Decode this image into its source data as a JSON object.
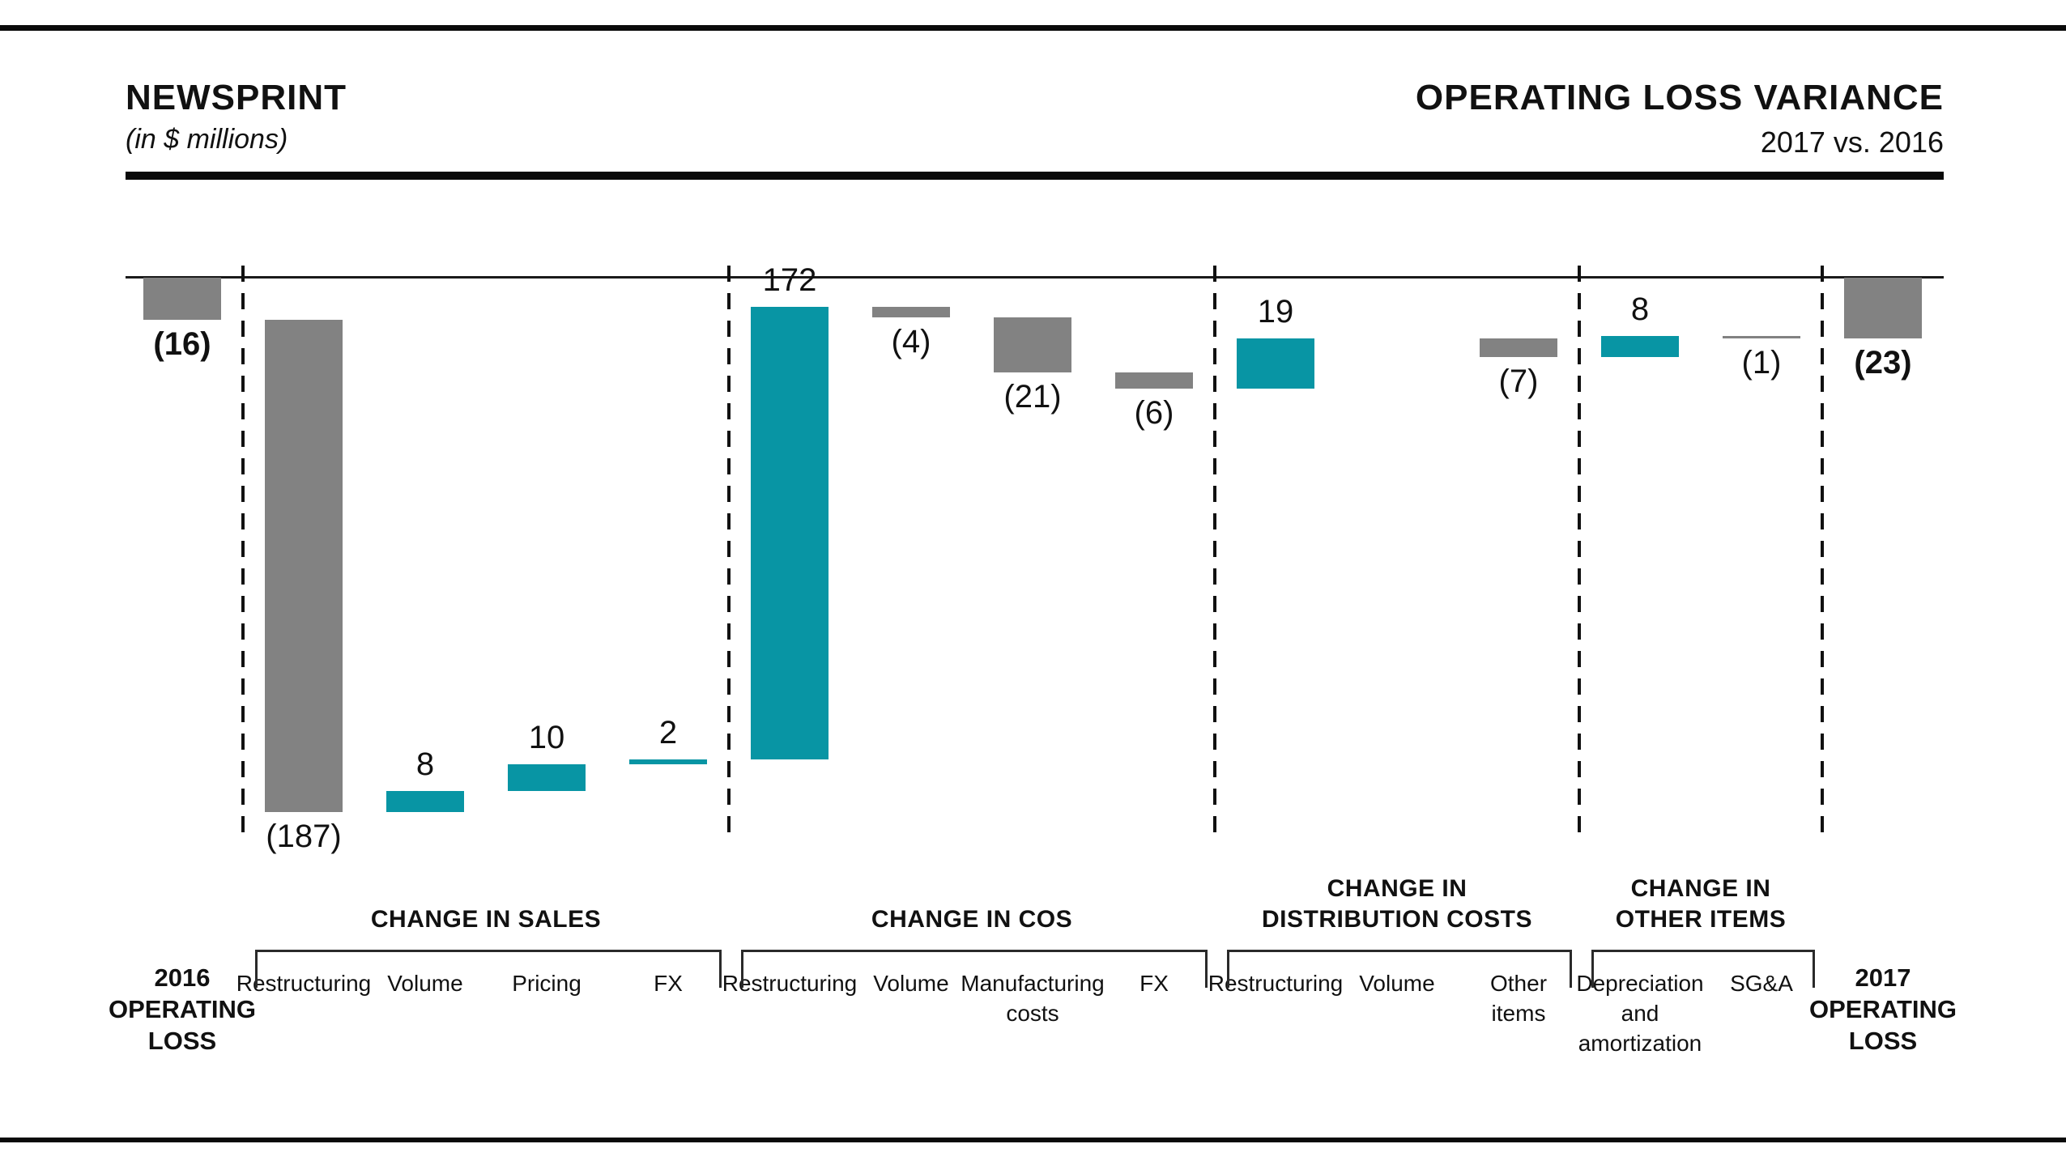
{
  "header": {
    "title_left": "NEWSPRINT",
    "subtitle_left": "(in $ millions)",
    "title_right": "OPERATING LOSS VARIANCE",
    "subtitle_right": "2017 vs. 2016"
  },
  "chart_data": {
    "type": "bar",
    "subtype": "waterfall",
    "title": "OPERATING LOSS VARIANCE",
    "subtitle": "2017 vs. 2016",
    "unit_label": "(in $ millions)",
    "orientation": "vertical",
    "zero_axis_line": true,
    "value_axis_hidden": true,
    "colors": {
      "increase": "#0895A4",
      "decrease": "#828282",
      "total": "#828282",
      "line": "#1a1a1a"
    },
    "bars": [
      {
        "name": "2016-operating-loss",
        "kind": "total",
        "value": -16,
        "label": "(16)",
        "axis_label_lines": [
          "2016",
          "OPERATING",
          "LOSS"
        ]
      },
      {
        "name": "sales-restructuring",
        "kind": "delta",
        "value": -187,
        "label": "(187)",
        "axis_label_lines": [
          "Restructuring"
        ]
      },
      {
        "name": "sales-volume",
        "kind": "delta",
        "value": 8,
        "label": "8",
        "axis_label_lines": [
          "Volume"
        ]
      },
      {
        "name": "sales-pricing",
        "kind": "delta",
        "value": 10,
        "label": "10",
        "axis_label_lines": [
          "Pricing"
        ]
      },
      {
        "name": "sales-fx",
        "kind": "delta",
        "value": 2,
        "label": "2",
        "axis_label_lines": [
          "FX"
        ]
      },
      {
        "name": "cos-restructuring",
        "kind": "delta",
        "value": 172,
        "label": "172",
        "axis_label_lines": [
          "Restructuring"
        ]
      },
      {
        "name": "cos-volume",
        "kind": "delta",
        "value": -4,
        "label": "(4)",
        "axis_label_lines": [
          "Volume"
        ]
      },
      {
        "name": "cos-manufacturing-costs",
        "kind": "delta",
        "value": -21,
        "label": "(21)",
        "axis_label_lines": [
          "Manufacturing",
          "costs"
        ]
      },
      {
        "name": "cos-fx",
        "kind": "delta",
        "value": -6,
        "label": "(6)",
        "axis_label_lines": [
          "FX"
        ]
      },
      {
        "name": "distribution-restructuring",
        "kind": "delta",
        "value": 19,
        "label": "19",
        "axis_label_lines": [
          "Restructuring"
        ]
      },
      {
        "name": "distribution-volume",
        "kind": "delta",
        "value": 0,
        "label": "",
        "axis_label_lines": [
          "Volume"
        ]
      },
      {
        "name": "distribution-other-items",
        "kind": "delta",
        "value": -7,
        "label": "(7)",
        "axis_label_lines": [
          "Other",
          "items"
        ]
      },
      {
        "name": "other-depreciation-and-amortization",
        "kind": "delta",
        "value": 8,
        "label": "8",
        "axis_label_lines": [
          "Depreciation",
          "and",
          "amortization"
        ]
      },
      {
        "name": "other-sga",
        "kind": "delta",
        "value": -1,
        "label": "(1)",
        "axis_label_lines": [
          "SG&A"
        ]
      },
      {
        "name": "2017-operating-loss",
        "kind": "total",
        "value": -23,
        "label": "(23)",
        "axis_label_lines": [
          "2017",
          "OPERATING",
          "LOSS"
        ]
      }
    ],
    "groups": [
      {
        "name": "change-in-sales",
        "title_lines": [
          "CHANGE IN SALES"
        ],
        "span": [
          1,
          4
        ]
      },
      {
        "name": "change-in-cos",
        "title_lines": [
          "CHANGE IN COS"
        ],
        "span": [
          5,
          8
        ]
      },
      {
        "name": "change-in-distribution-costs",
        "title_lines": [
          "CHANGE IN",
          "DISTRIBUTION COSTS"
        ],
        "span": [
          9,
          11
        ]
      },
      {
        "name": "change-in-other-items",
        "title_lines": [
          "CHANGE IN",
          "OTHER ITEMS"
        ],
        "span": [
          12,
          13
        ]
      }
    ]
  }
}
